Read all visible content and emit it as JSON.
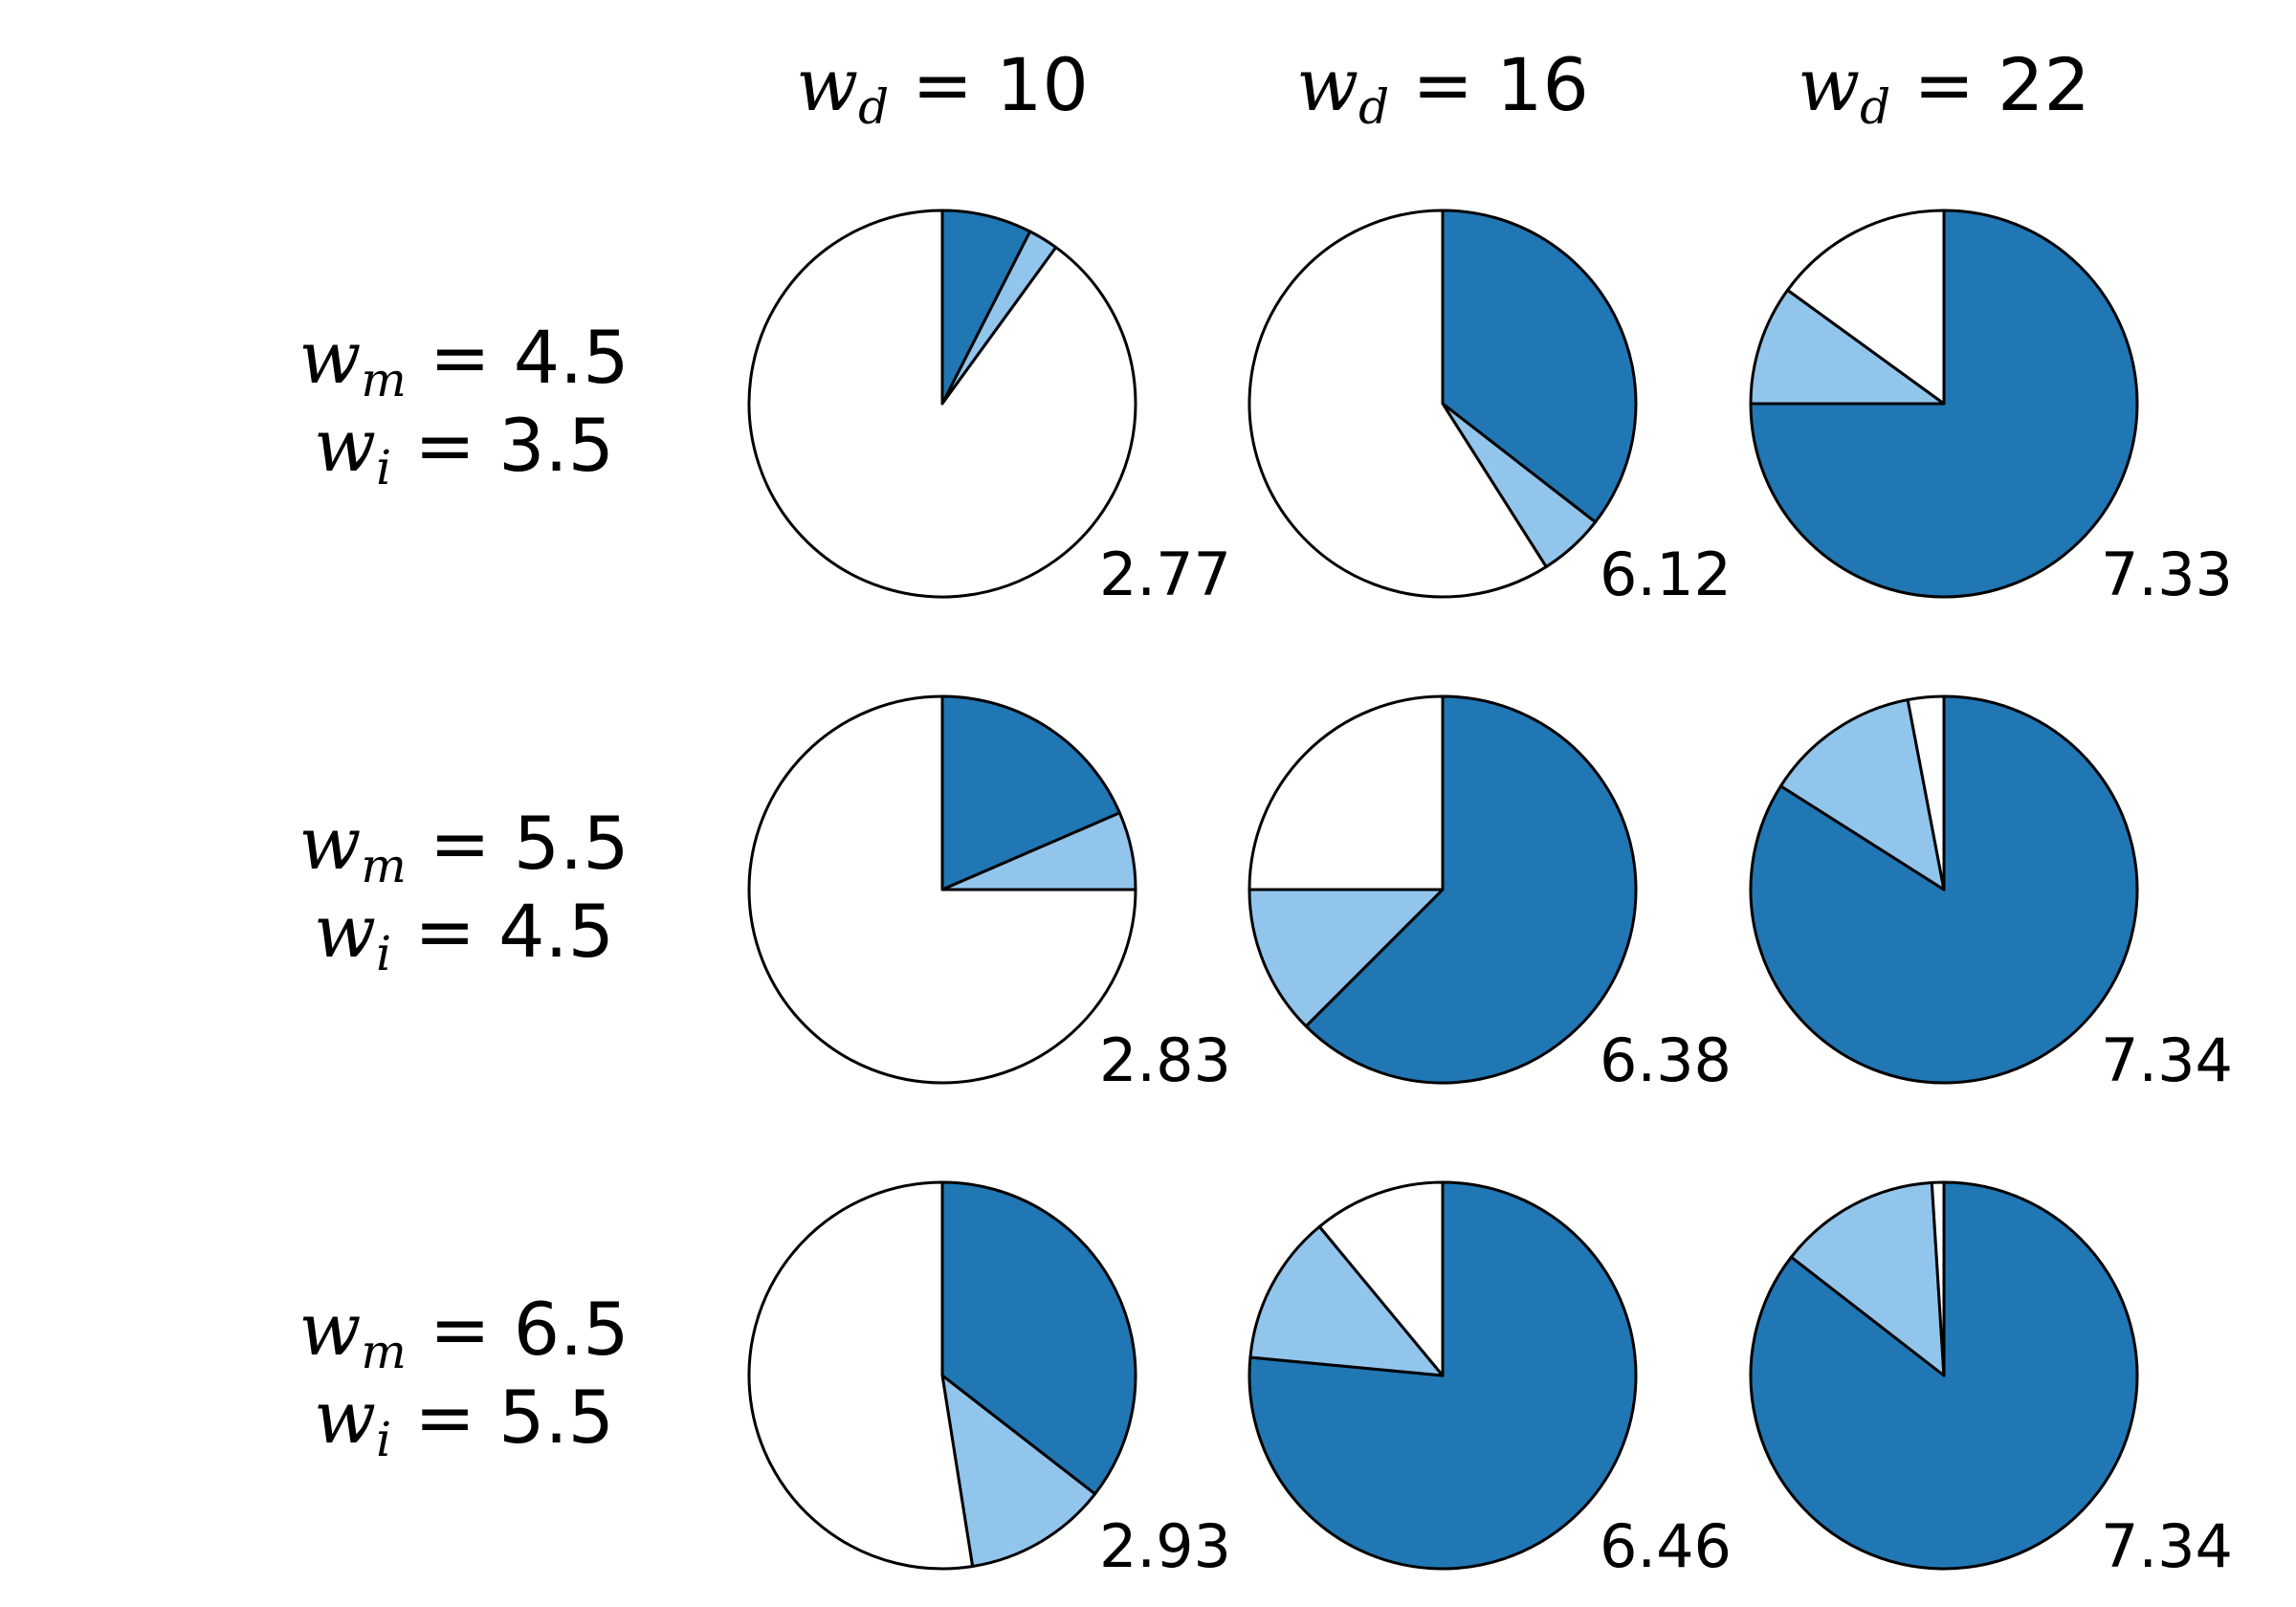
{
  "colors": {
    "dark_blue": "#2077b4",
    "light_blue": "#92c5ec",
    "white": "#ffffff",
    "outline": "#000000"
  },
  "columns": [
    {
      "var": "w",
      "sub": "d",
      "value": "10"
    },
    {
      "var": "w",
      "sub": "d",
      "value": "16"
    },
    {
      "var": "w",
      "sub": "d",
      "value": "22"
    }
  ],
  "rows": [
    {
      "lines": [
        {
          "var": "w",
          "sub": "m",
          "value": "4.5"
        },
        {
          "var": "w",
          "sub": "i",
          "value": "3.5"
        }
      ]
    },
    {
      "lines": [
        {
          "var": "w",
          "sub": "m",
          "value": "5.5"
        },
        {
          "var": "w",
          "sub": "i",
          "value": "4.5"
        }
      ]
    },
    {
      "lines": [
        {
          "var": "w",
          "sub": "m",
          "value": "6.5"
        },
        {
          "var": "w",
          "sub": "i",
          "value": "5.5"
        }
      ]
    }
  ],
  "chart_data": {
    "type": "pie",
    "grid": [
      [
        {
          "slices": [
            7.5,
            2.5,
            90.0
          ],
          "value_label": "2.77"
        },
        {
          "slices": [
            35.5,
            5.5,
            59.0
          ],
          "value_label": "6.12"
        },
        {
          "slices": [
            75.0,
            10.0,
            15.0
          ],
          "value_label": "7.33"
        }
      ],
      [
        {
          "slices": [
            18.5,
            6.5,
            75.0
          ],
          "value_label": "2.83"
        },
        {
          "slices": [
            62.5,
            12.5,
            25.0
          ],
          "value_label": "6.38"
        },
        {
          "slices": [
            84.0,
            13.0,
            3.0
          ],
          "value_label": "7.34"
        }
      ],
      [
        {
          "slices": [
            35.5,
            12.0,
            52.5
          ],
          "value_label": "2.93"
        },
        {
          "slices": [
            76.5,
            12.5,
            11.0
          ],
          "value_label": "6.46"
        },
        {
          "slices": [
            85.5,
            13.5,
            1.0
          ],
          "value_label": "7.34"
        }
      ]
    ]
  }
}
